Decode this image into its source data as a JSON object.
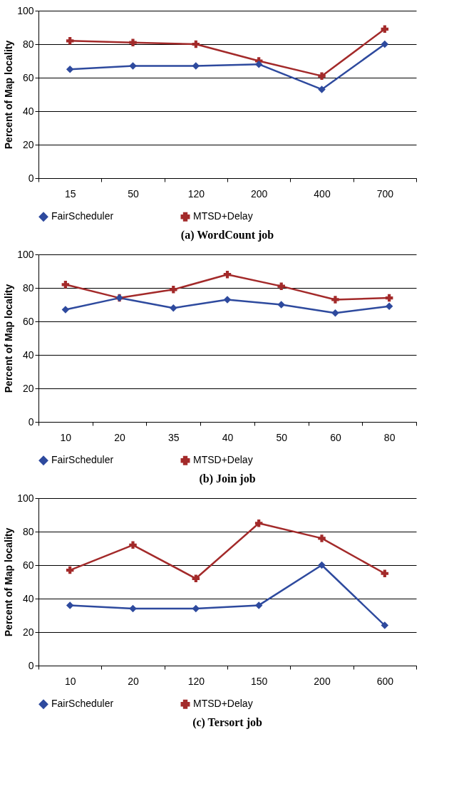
{
  "chart_data": [
    {
      "type": "line",
      "title": "(a)  WordCount job",
      "ylabel": "Percent of Map locality",
      "categories": [
        "15",
        "50",
        "120",
        "200",
        "400",
        "700"
      ],
      "ylim": [
        0,
        100
      ],
      "yticks": [
        0,
        20,
        40,
        60,
        80,
        100
      ],
      "grid": "y",
      "legend": "bottom",
      "line_style": "solid",
      "series": [
        {
          "name": "FairScheduler",
          "color": "#2e4a9e",
          "marker": "diamond",
          "values": [
            65,
            67,
            67,
            68,
            53,
            80
          ]
        },
        {
          "name": "MTSD+Delay",
          "color": "#a32a2a",
          "marker": "cross",
          "values": [
            82,
            81,
            80,
            70,
            61,
            89
          ]
        }
      ]
    },
    {
      "type": "line",
      "title": "(b)  Join job",
      "ylabel": "Percent of Map locality",
      "categories": [
        "10",
        "20",
        "35",
        "40",
        "50",
        "60",
        "80"
      ],
      "ylim": [
        0,
        100
      ],
      "yticks": [
        0,
        20,
        40,
        60,
        80,
        100
      ],
      "grid": "y",
      "legend": "bottom",
      "line_style": "solid",
      "series": [
        {
          "name": "FairScheduler",
          "color": "#2e4a9e",
          "marker": "diamond",
          "values": [
            67,
            74,
            68,
            73,
            70,
            65,
            69
          ]
        },
        {
          "name": "MTSD+Delay",
          "color": "#a32a2a",
          "marker": "cross",
          "values": [
            82,
            74,
            79,
            88,
            81,
            73,
            74
          ]
        }
      ]
    },
    {
      "type": "line",
      "title": "(c)  Tersort job",
      "ylabel": "Percent of Map locality",
      "categories": [
        "10",
        "20",
        "120",
        "150",
        "200",
        "600"
      ],
      "ylim": [
        0,
        100
      ],
      "yticks": [
        0,
        20,
        40,
        60,
        80,
        100
      ],
      "grid": "y",
      "legend": "bottom",
      "line_style": "solid",
      "series": [
        {
          "name": "FairScheduler",
          "color": "#2e4a9e",
          "marker": "diamond",
          "values": [
            36,
            34,
            34,
            36,
            60,
            24
          ]
        },
        {
          "name": "MTSD+Delay",
          "color": "#a32a2a",
          "marker": "cross",
          "values": [
            57,
            72,
            52,
            85,
            76,
            55
          ]
        }
      ]
    }
  ]
}
